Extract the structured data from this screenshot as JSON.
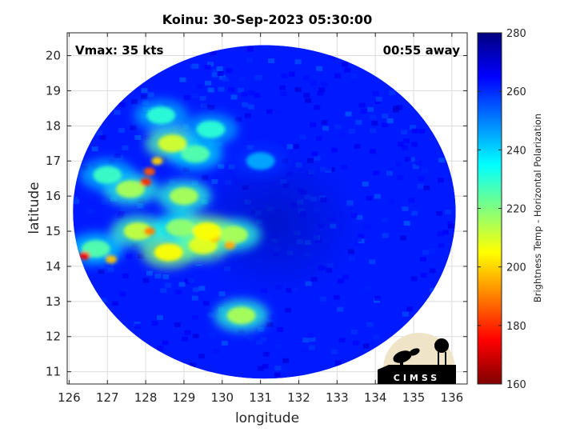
{
  "chart_data": {
    "type": "heatmap",
    "title": "Koinu: 30-Sep-2023 05:30:00",
    "xlabel": "longitude",
    "ylabel": "latitude",
    "xlim": [
      125.95,
      136.4
    ],
    "ylim": [
      10.65,
      20.65
    ],
    "x_ticks": [
      "126",
      "127",
      "128",
      "129",
      "130",
      "131",
      "132",
      "133",
      "134",
      "135",
      "136"
    ],
    "y_ticks": [
      "11",
      "12",
      "13",
      "14",
      "15",
      "16",
      "17",
      "18",
      "19",
      "20"
    ],
    "grid": true,
    "annotations": {
      "vmax": "Vmax: 35 kts",
      "away": "00:55 away"
    },
    "colorbar": {
      "label": "Brightness Temp - Horizontal Polarization",
      "range": [
        160,
        280
      ],
      "ticks": [
        "160",
        "180",
        "200",
        "220",
        "240",
        "260",
        "280"
      ],
      "colormap": [
        "#800000",
        "#ff0000",
        "#ff8000",
        "#ffff00",
        "#80ff80",
        "#00ffff",
        "#0080ff",
        "#0000ff",
        "#000080"
      ]
    },
    "swath": {
      "center_lon": 131.1,
      "center_lat": 15.55,
      "radius_lon": 5.0,
      "radius_lat": 4.75,
      "background_tb": 262
    },
    "features": [
      {
        "lon": 128.6,
        "lat": 14.4,
        "tb": 205
      },
      {
        "lon": 129.5,
        "lat": 14.6,
        "tb": 208
      },
      {
        "lon": 130.3,
        "lat": 14.9,
        "tb": 215
      },
      {
        "lon": 127.8,
        "lat": 15.0,
        "tb": 212
      },
      {
        "lon": 128.9,
        "lat": 15.1,
        "tb": 218
      },
      {
        "lon": 127.6,
        "lat": 16.2,
        "tb": 215
      },
      {
        "lon": 126.7,
        "lat": 14.5,
        "tb": 225
      },
      {
        "lon": 126.4,
        "lat": 14.3,
        "tb": 175
      },
      {
        "lon": 128.0,
        "lat": 16.4,
        "tb": 180
      },
      {
        "lon": 128.1,
        "lat": 16.7,
        "tb": 185
      },
      {
        "lon": 128.1,
        "lat": 15.0,
        "tb": 190
      },
      {
        "lon": 128.3,
        "lat": 17.0,
        "tb": 200
      },
      {
        "lon": 127.1,
        "lat": 14.2,
        "tb": 198
      },
      {
        "lon": 129.8,
        "lat": 14.8,
        "tb": 198
      },
      {
        "lon": 130.2,
        "lat": 14.6,
        "tb": 195
      },
      {
        "lon": 128.7,
        "lat": 17.5,
        "tb": 210
      },
      {
        "lon": 129.0,
        "lat": 16.0,
        "tb": 215
      },
      {
        "lon": 129.6,
        "lat": 15.0,
        "tb": 205
      },
      {
        "lon": 130.5,
        "lat": 12.6,
        "tb": 215
      },
      {
        "lon": 128.4,
        "lat": 18.3,
        "tb": 230
      },
      {
        "lon": 129.3,
        "lat": 17.2,
        "tb": 225
      },
      {
        "lon": 129.7,
        "lat": 17.9,
        "tb": 230
      },
      {
        "lon": 127.0,
        "lat": 16.6,
        "tb": 228
      },
      {
        "lon": 131.0,
        "lat": 17.0,
        "tb": 245
      }
    ]
  }
}
